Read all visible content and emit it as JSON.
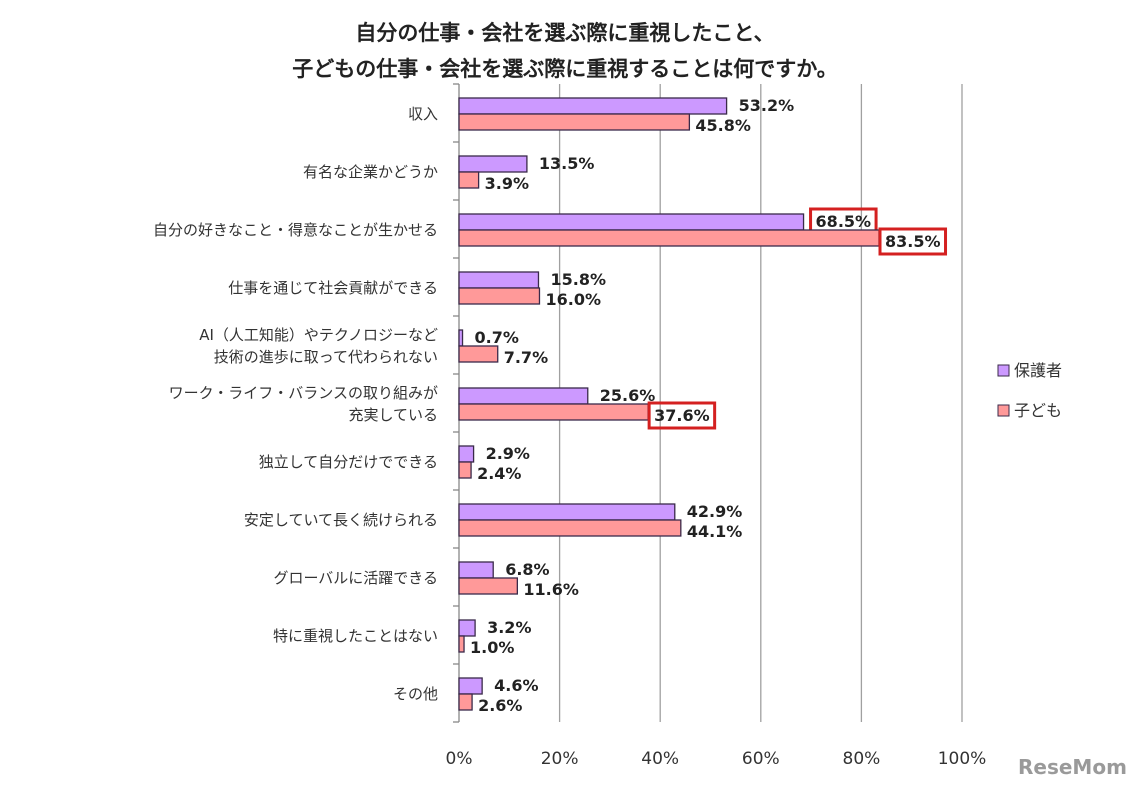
{
  "chart_data": {
    "type": "bar",
    "orientation": "horizontal",
    "title": [
      "自分の仕事・会社を選ぶ際に重視したこと、",
      "子どもの仕事・会社を選ぶ際に重視することは何ですか。"
    ],
    "categories": [
      [
        "収入"
      ],
      [
        "有名な企業かどうか"
      ],
      [
        "自分の好きなこと・得意なことが生かせる"
      ],
      [
        "仕事を通じて社会貢献ができる"
      ],
      [
        "AI（人工知能）やテクノロジーなど",
        "技術の進歩に取って代わられない"
      ],
      [
        "ワーク・ライフ・バランスの取り組みが",
        "充実している"
      ],
      [
        "独立して自分だけでできる"
      ],
      [
        "安定していて長く続けられる"
      ],
      [
        "グローバルに活躍できる"
      ],
      [
        "特に重視したことはない"
      ],
      [
        "その他"
      ]
    ],
    "series": [
      {
        "name": "保護者",
        "color": "#cc99ff",
        "values": [
          53.2,
          13.5,
          68.5,
          15.8,
          0.7,
          25.6,
          2.9,
          42.9,
          6.8,
          3.2,
          4.6
        ],
        "labels": [
          "53.2%",
          "13.5%",
          "68.5%",
          "15.8%",
          "0.7%",
          "25.6%",
          "2.9%",
          "42.9%",
          "6.8%",
          "3.2%",
          "4.6%"
        ],
        "highlighted": [
          2
        ]
      },
      {
        "name": "子ども",
        "color": "#ff9999",
        "values": [
          45.8,
          3.9,
          83.5,
          16.0,
          7.7,
          37.6,
          2.4,
          44.1,
          11.6,
          1.0,
          2.6
        ],
        "labels": [
          "45.8%",
          "3.9%",
          "83.5%",
          "16.0%",
          "7.7%",
          "37.6%",
          "2.4%",
          "44.1%",
          "11.6%",
          "1.0%",
          "2.6%"
        ],
        "highlighted": [
          2,
          5
        ]
      }
    ],
    "xlim": [
      0,
      100
    ],
    "xticks": [
      "0%",
      "20%",
      "40%",
      "60%",
      "80%",
      "100%"
    ],
    "grid": true,
    "legend": "right",
    "highlight_color": "#d42020",
    "xlabel": "",
    "ylabel": ""
  },
  "watermark": "ReseMom"
}
